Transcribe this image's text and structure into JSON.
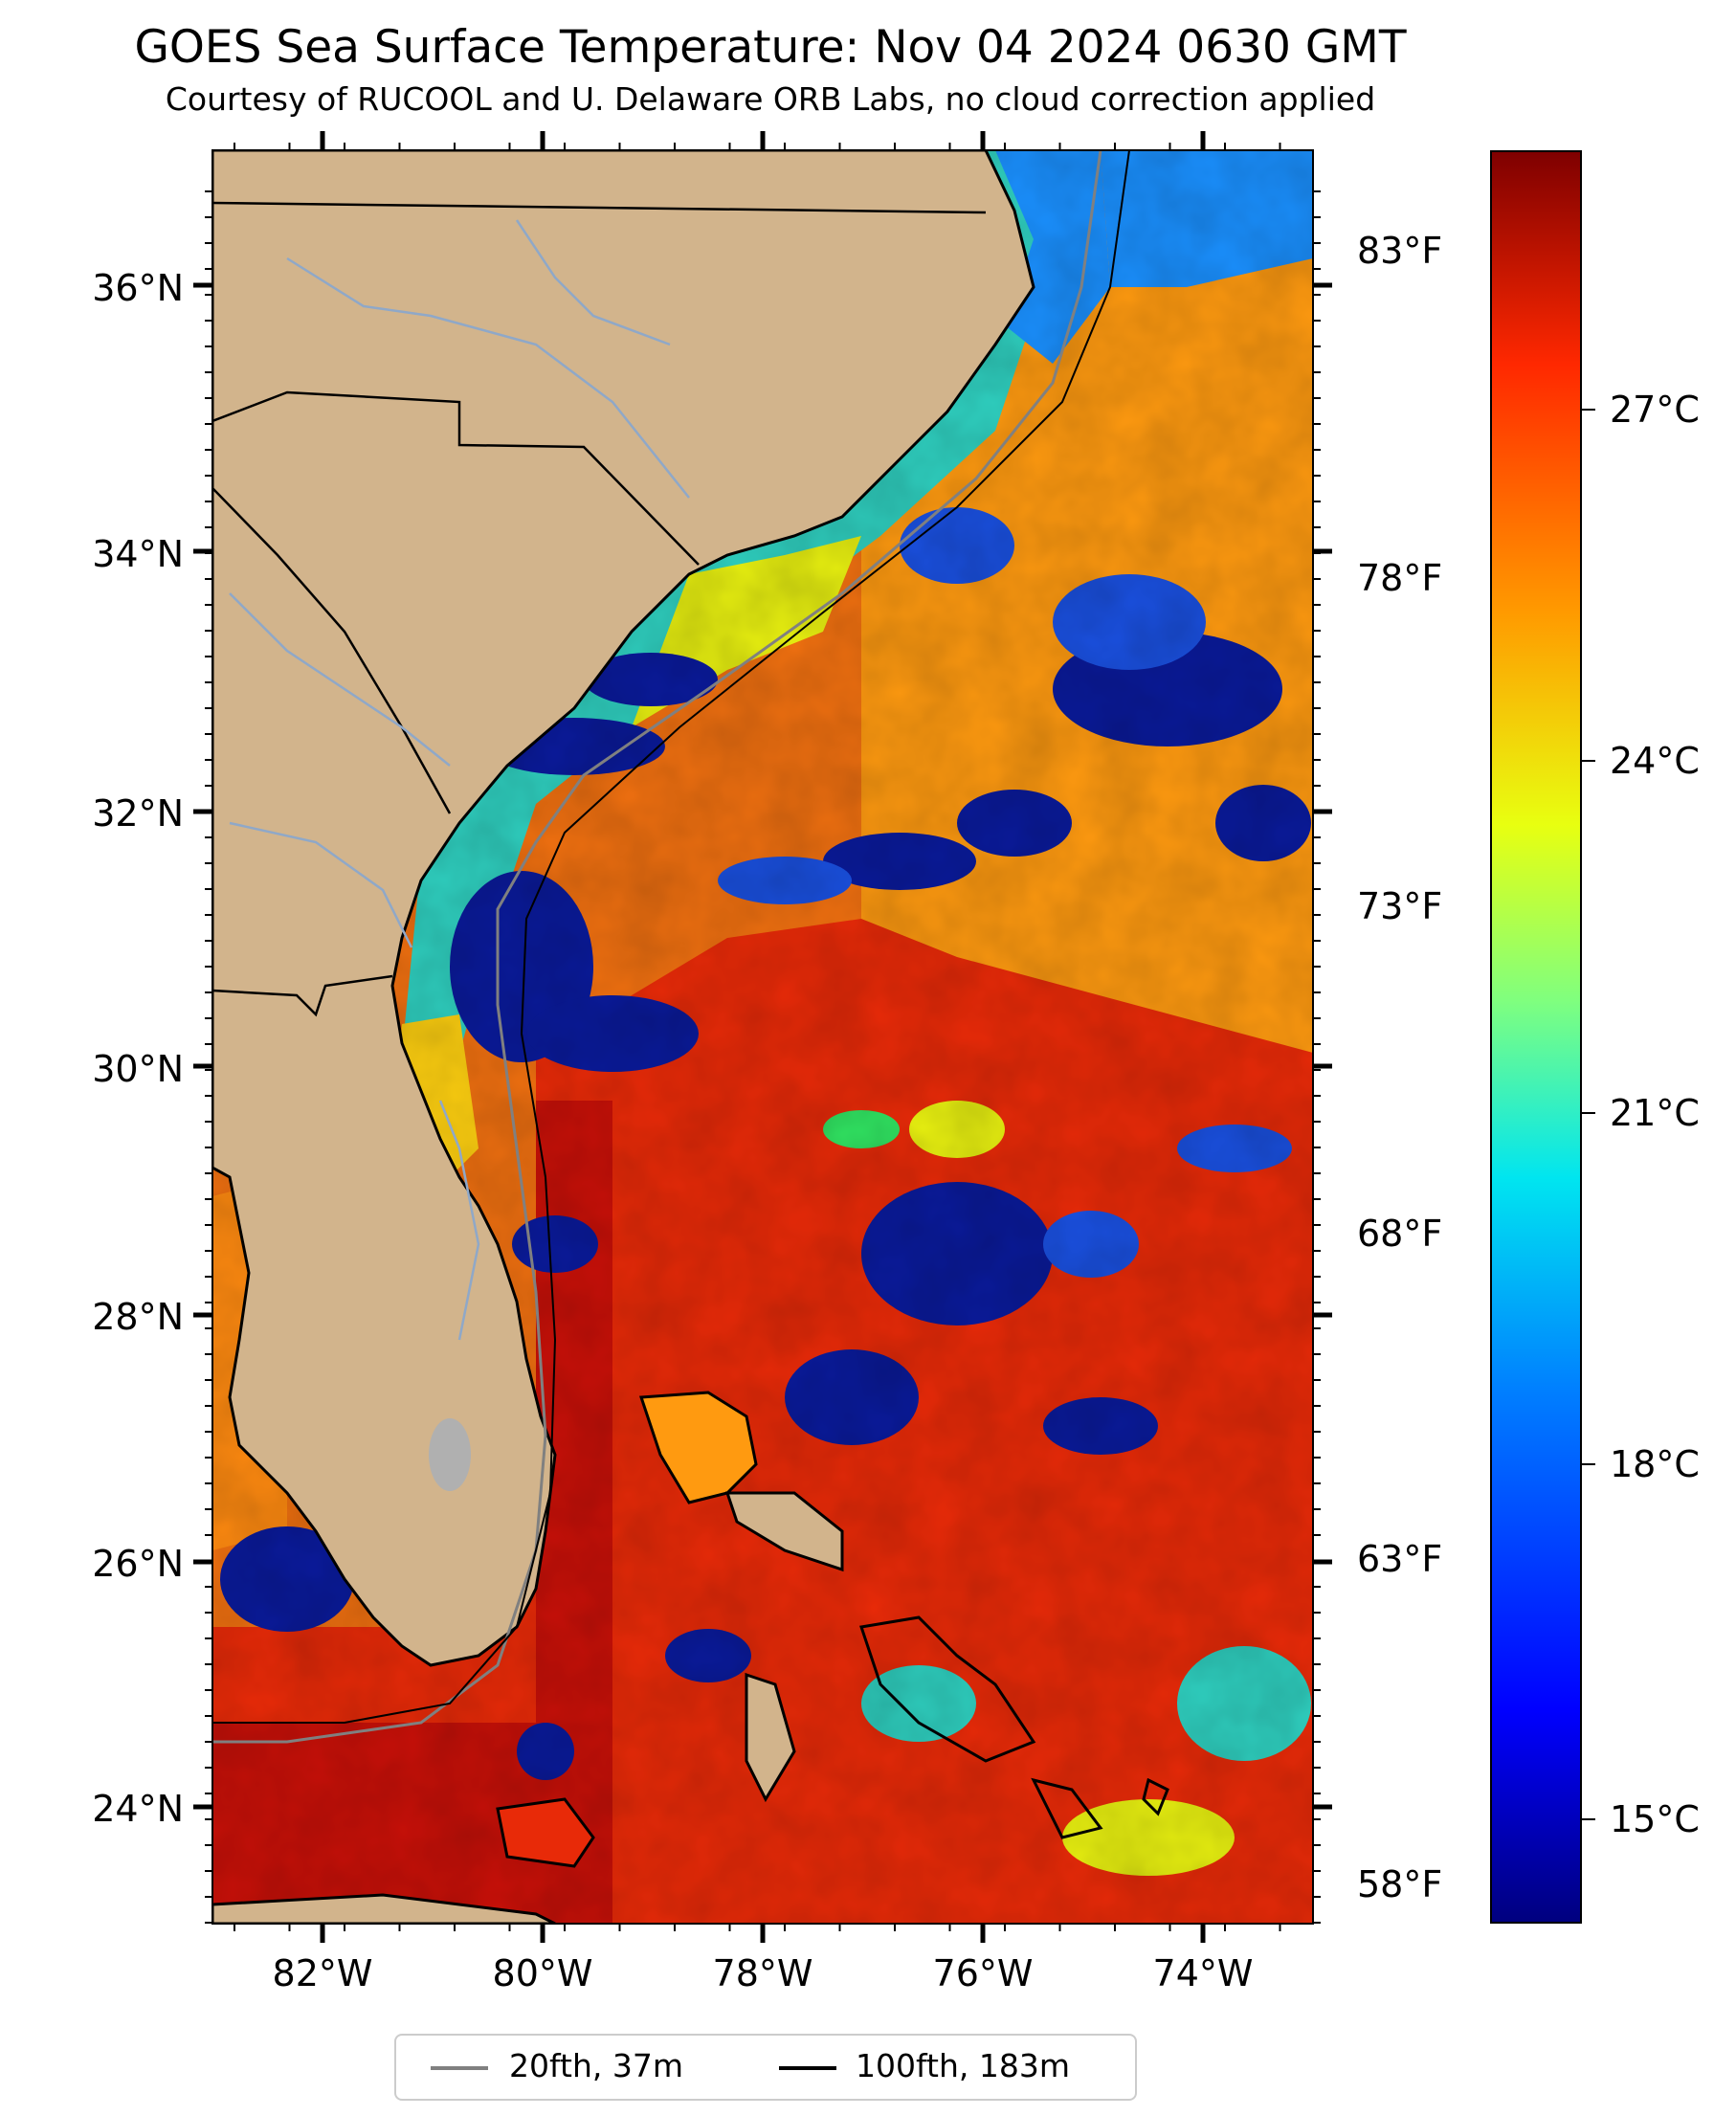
{
  "header": {
    "title": "GOES Sea Surface Temperature: Nov 04 2024 0630 GMT",
    "subtitle": "Courtesy of RUCOOL and U. Delaware ORB Labs, no cloud correction applied"
  },
  "map": {
    "lat_labels": [
      "36°N",
      "34°N",
      "32°N",
      "30°N",
      "28°N",
      "26°N",
      "24°N"
    ],
    "lon_labels": [
      "82°W",
      "80°W",
      "78°W",
      "76°W",
      "74°W"
    ],
    "fahrenheit_labels": [
      "83°F",
      "78°F",
      "73°F",
      "68°F",
      "63°F",
      "58°F"
    ],
    "extent": {
      "lon_min": -83,
      "lon_max": -73,
      "lat_min": 23.1,
      "lat_max": 36.9
    },
    "colors": {
      "land": "#d2b48c",
      "rivers": "#8fa8c8",
      "warm": "#e8270a",
      "cool": "#0a1a9a"
    }
  },
  "colorbar": {
    "labels": [
      "27°C",
      "24°C",
      "21°C",
      "18°C",
      "15°C"
    ],
    "range_c": [
      13.9,
      29.3
    ],
    "colormap": "jet"
  },
  "legend": {
    "items": [
      {
        "label": "20fth, 37m",
        "color": "#808080"
      },
      {
        "label": "100fth, 183m",
        "color": "#000000"
      }
    ]
  }
}
